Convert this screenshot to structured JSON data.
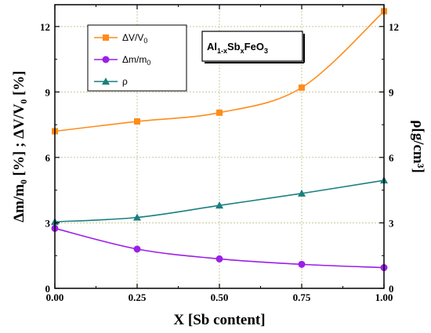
{
  "chart_data": {
    "type": "line",
    "x": [
      0.0,
      0.25,
      0.5,
      0.75,
      1.0
    ],
    "xlim": [
      0.0,
      1.0
    ],
    "x_ticks": [
      "0.00",
      "0.25",
      "0.50",
      "0.75",
      "1.00"
    ],
    "ylim": [
      0,
      13
    ],
    "y_ticks": [
      "0",
      "3",
      "6",
      "9",
      "12"
    ],
    "y2lim": [
      0,
      13
    ],
    "y2_ticks": [
      "0",
      "3",
      "6",
      "9",
      "12"
    ],
    "xlabel": "X [Sb content]",
    "ylabel_left": "Δm/m₀ [%] ;  ΔV/V₀ [%]",
    "ylabel_right": "ρ[g/cm³]",
    "grid": true,
    "legend_position": "top-left",
    "series": [
      {
        "name": "ΔV/V0",
        "color": "#ff8c1a",
        "marker": "square",
        "axis": "left",
        "values": [
          7.2,
          7.65,
          8.05,
          9.2,
          12.7
        ]
      },
      {
        "name": "Δm/m0",
        "color": "#9b1fe8",
        "marker": "circle",
        "axis": "left",
        "values": [
          2.75,
          1.8,
          1.35,
          1.1,
          0.95
        ]
      },
      {
        "name": "ρ",
        "color": "#1a7f7f",
        "marker": "triangle",
        "axis": "right",
        "values": [
          3.05,
          3.25,
          3.8,
          4.35,
          4.95
        ]
      }
    ],
    "annotation": {
      "base": "Al",
      "sub1": "1-x",
      "mid": "Sb",
      "sub2": "x",
      "tail": "FeO",
      "sub3": "3"
    }
  }
}
